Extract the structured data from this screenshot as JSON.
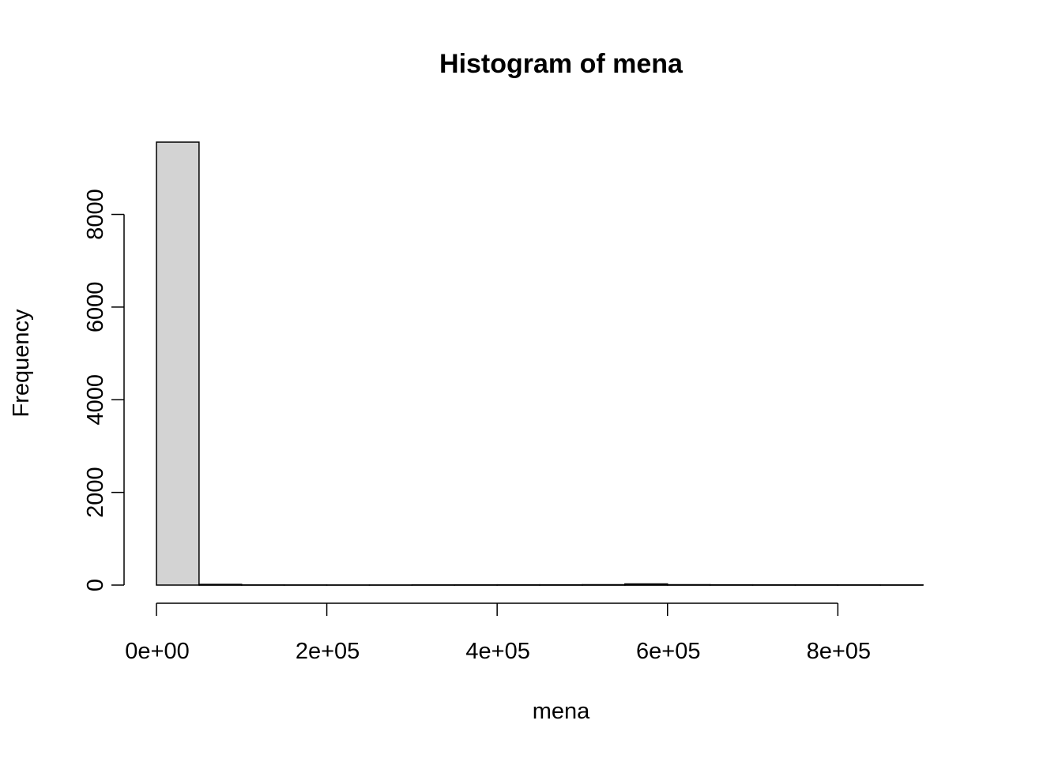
{
  "chart_data": {
    "type": "bar",
    "title": "Histogram of mena",
    "xlabel": "mena",
    "ylabel": "Frequency",
    "bar_color": "#d3d3d3",
    "bin_width": 50000,
    "bins": [
      {
        "start": 0,
        "end": 50000,
        "count": 9560
      },
      {
        "start": 50000,
        "end": 100000,
        "count": 15
      },
      {
        "start": 100000,
        "end": 150000,
        "count": 3
      },
      {
        "start": 150000,
        "end": 200000,
        "count": 2
      },
      {
        "start": 200000,
        "end": 250000,
        "count": 1
      },
      {
        "start": 250000,
        "end": 300000,
        "count": 1
      },
      {
        "start": 300000,
        "end": 350000,
        "count": 4
      },
      {
        "start": 350000,
        "end": 400000,
        "count": 5
      },
      {
        "start": 400000,
        "end": 450000,
        "count": 6
      },
      {
        "start": 450000,
        "end": 500000,
        "count": 6
      },
      {
        "start": 500000,
        "end": 550000,
        "count": 8
      },
      {
        "start": 550000,
        "end": 600000,
        "count": 25
      },
      {
        "start": 600000,
        "end": 650000,
        "count": 8
      },
      {
        "start": 650000,
        "end": 700000,
        "count": 6
      },
      {
        "start": 700000,
        "end": 750000,
        "count": 5
      },
      {
        "start": 750000,
        "end": 800000,
        "count": 5
      },
      {
        "start": 800000,
        "end": 850000,
        "count": 4
      },
      {
        "start": 850000,
        "end": 900000,
        "count": 3
      }
    ],
    "xlim": [
      0,
      950000
    ],
    "ylim": [
      0,
      9560
    ],
    "x_ticks": [
      {
        "value": 0,
        "label": "0e+00"
      },
      {
        "value": 200000,
        "label": "2e+05"
      },
      {
        "value": 400000,
        "label": "4e+05"
      },
      {
        "value": 600000,
        "label": "6e+05"
      },
      {
        "value": 800000,
        "label": "8e+05"
      }
    ],
    "y_ticks": [
      {
        "value": 0,
        "label": "0"
      },
      {
        "value": 2000,
        "label": "2000"
      },
      {
        "value": 4000,
        "label": "4000"
      },
      {
        "value": 6000,
        "label": "6000"
      },
      {
        "value": 8000,
        "label": "8000"
      }
    ],
    "grid": false,
    "legend": "none"
  }
}
